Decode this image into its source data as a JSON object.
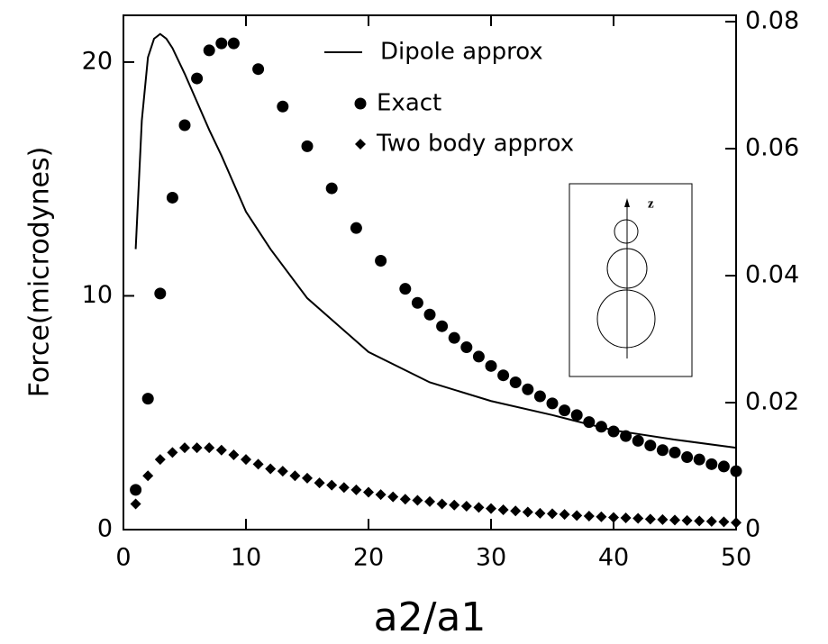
{
  "chart_data": {
    "type": "line",
    "x_label": "a2/a1",
    "y_label": "Force(microdynes)",
    "xlim": [
      0,
      50
    ],
    "xticks": [
      0,
      10,
      20,
      30,
      40,
      50
    ],
    "ylim": [
      0,
      22
    ],
    "yticks": [
      0,
      10,
      20
    ],
    "y2lim": [
      0,
      0.081
    ],
    "y2ticks": [
      0,
      0.02,
      0.04,
      0.06,
      0.08
    ],
    "inset_label": "z",
    "series": [
      {
        "name": "Dipole approx",
        "color": "#000000",
        "marker": "line",
        "x": [
          1,
          1.5,
          2,
          2.5,
          3,
          3.5,
          4,
          5,
          6,
          7,
          8,
          10,
          12,
          15,
          20,
          25,
          30,
          35,
          38,
          40,
          45,
          50
        ],
        "values": [
          12,
          17.5,
          20.2,
          21.0,
          21.2,
          21.0,
          20.6,
          19.5,
          18.3,
          17.1,
          16.0,
          13.6,
          12.0,
          9.9,
          7.6,
          6.3,
          5.5,
          4.9,
          4.5,
          4.25,
          3.85,
          3.5
        ]
      },
      {
        "name": "Exact",
        "color": "#000000",
        "marker": "circle",
        "x": [
          1,
          2,
          3,
          4,
          5,
          6,
          7,
          8,
          9,
          11,
          13,
          15,
          17,
          19,
          21,
          23,
          24,
          25,
          26,
          27,
          28,
          29,
          30,
          31,
          32,
          33,
          34,
          35,
          36,
          37,
          38,
          39,
          40,
          41,
          42,
          43,
          44,
          45,
          46,
          47,
          48,
          49,
          50
        ],
        "values": [
          1.7,
          5.6,
          10.1,
          14.2,
          17.3,
          19.3,
          20.5,
          20.8,
          20.8,
          19.7,
          18.1,
          16.4,
          14.6,
          12.9,
          11.5,
          10.3,
          9.7,
          9.2,
          8.7,
          8.2,
          7.8,
          7.4,
          7.0,
          6.6,
          6.3,
          6.0,
          5.7,
          5.4,
          5.1,
          4.9,
          4.6,
          4.4,
          4.2,
          4.0,
          3.8,
          3.6,
          3.4,
          3.3,
          3.1,
          3.0,
          2.8,
          2.7,
          2.5
        ]
      },
      {
        "name": "Two body  approx",
        "color": "#000000",
        "marker": "diamond",
        "x": [
          1,
          2,
          3,
          4,
          5,
          6,
          7,
          8,
          9,
          10,
          11,
          12,
          13,
          14,
          15,
          16,
          17,
          18,
          19,
          20,
          21,
          22,
          23,
          24,
          25,
          26,
          27,
          28,
          29,
          30,
          31,
          32,
          33,
          34,
          35,
          36,
          37,
          38,
          39,
          40,
          41,
          42,
          43,
          44,
          45,
          46,
          47,
          48,
          49,
          50
        ],
        "values": [
          1.1,
          2.3,
          3.0,
          3.3,
          3.5,
          3.5,
          3.5,
          3.4,
          3.2,
          3.0,
          2.8,
          2.6,
          2.5,
          2.3,
          2.2,
          2.0,
          1.9,
          1.8,
          1.7,
          1.6,
          1.5,
          1.4,
          1.3,
          1.25,
          1.2,
          1.1,
          1.05,
          1.0,
          0.95,
          0.9,
          0.85,
          0.8,
          0.75,
          0.7,
          0.68,
          0.65,
          0.6,
          0.58,
          0.55,
          0.52,
          0.5,
          0.48,
          0.45,
          0.43,
          0.41,
          0.39,
          0.37,
          0.35,
          0.33,
          0.3
        ]
      }
    ]
  }
}
